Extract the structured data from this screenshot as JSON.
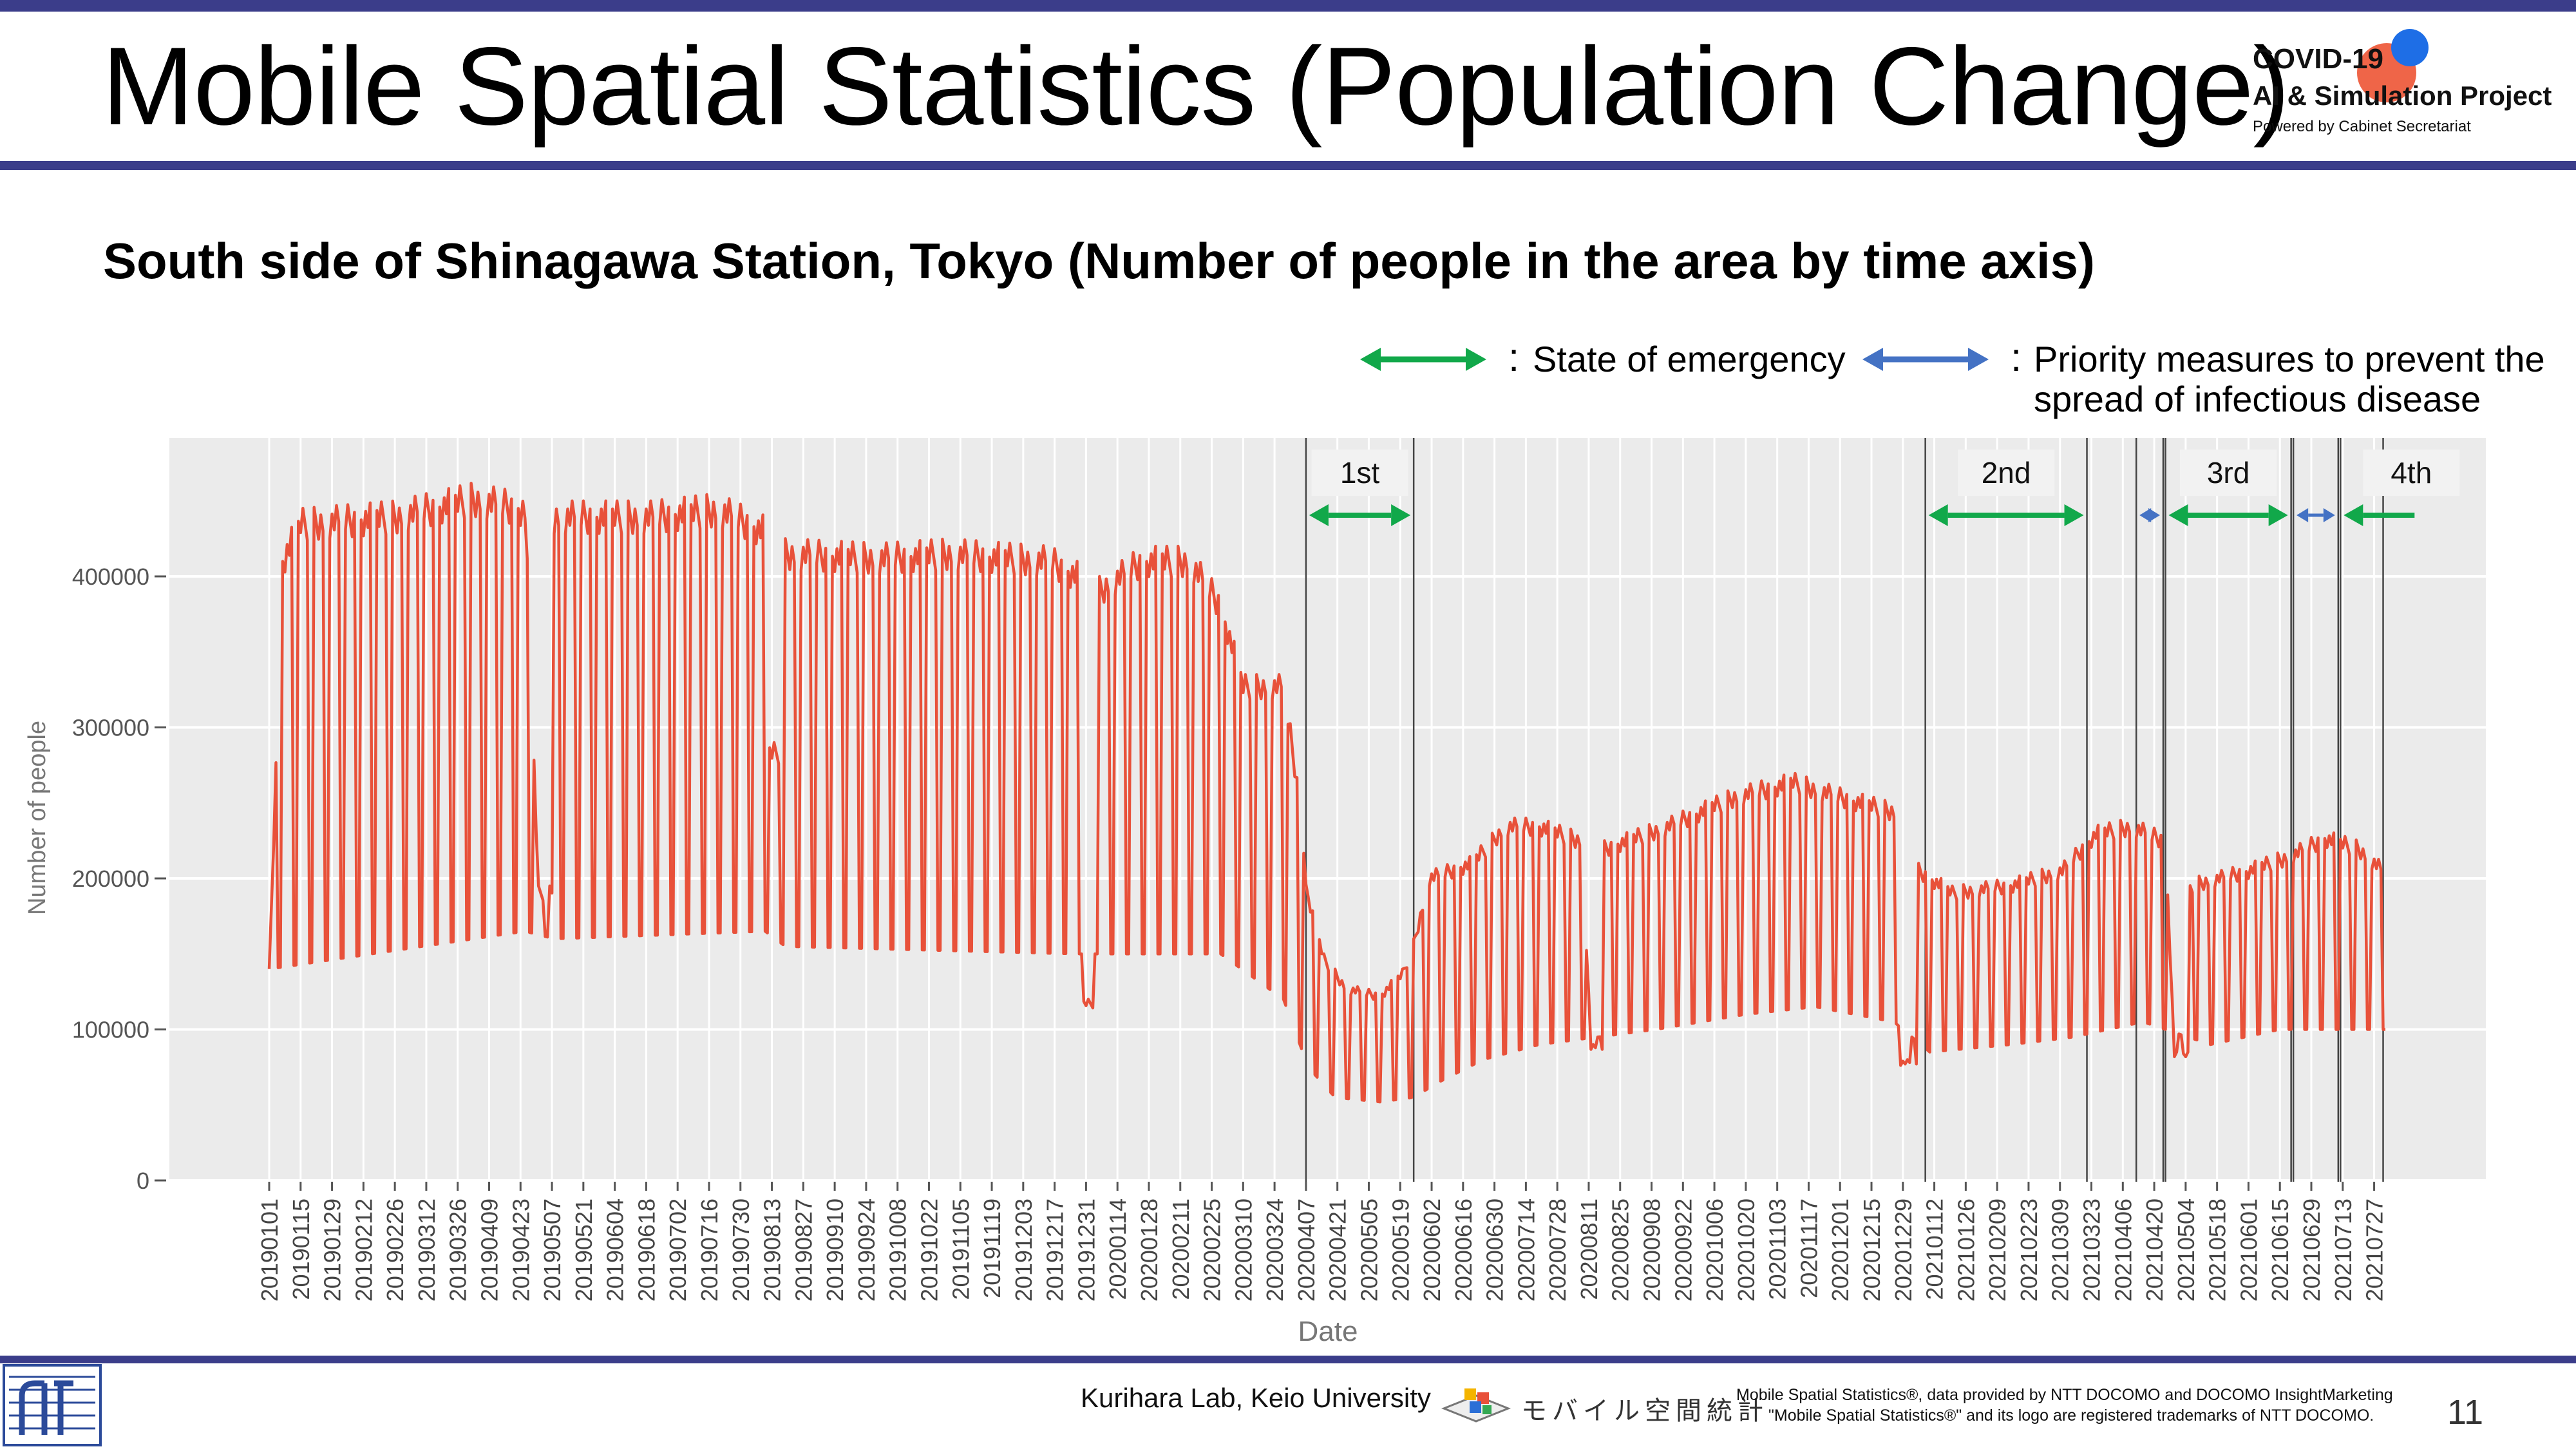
{
  "slide": {
    "title": "Mobile Spatial Statistics (Population Change)",
    "subtitle": "South side of Shinagawa Station, Tokyo (Number of people in the area by time axis)",
    "page_number": "11"
  },
  "logo": {
    "line1": "COVID-19",
    "line2": "AI & Simulation Project",
    "line3": "Powered by Cabinet Secretariat"
  },
  "legend": {
    "emergency_label": "State of emergency",
    "priority_label_line1": "Priority measures to prevent the",
    "priority_label_line2": "spread of infectious disease",
    "emergency_color": "#11a84a",
    "priority_color": "#4472c4"
  },
  "footer": {
    "lab": "Kurihara Lab, Keio University",
    "mobile_logo_text": "モバイル空間統計",
    "credit_line1": "Mobile Spatial Statistics®, data provided by NTT DOCOMO and DOCOMO InsightMarketing",
    "credit_line2": "\"Mobile Spatial Statistics®\" and its logo are registered trademarks of NTT DOCOMO."
  },
  "chart_data": {
    "type": "line",
    "xlabel": "Date",
    "ylabel": "Number of people",
    "y_ticks": [
      0,
      100000,
      200000,
      300000,
      400000
    ],
    "y_tick_labels": [
      "0",
      "100000",
      "200000",
      "300000",
      "400000"
    ],
    "ylim": [
      0,
      480000
    ],
    "x_start": "20190101",
    "x_end": "20210801",
    "x_tick_labels": [
      "20190101",
      "20190115",
      "20190129",
      "20190212",
      "20190226",
      "20190312",
      "20190326",
      "20190409",
      "20190423",
      "20190507",
      "20190521",
      "20190604",
      "20190618",
      "20190702",
      "20190716",
      "20190730",
      "20190813",
      "20190827",
      "20190910",
      "20190924",
      "20191008",
      "20191022",
      "20191105",
      "20191119",
      "20191203",
      "20191217",
      "20191231",
      "20200114",
      "20200128",
      "20200211",
      "20200225",
      "20200310",
      "20200324",
      "20200407",
      "20200421",
      "20200505",
      "20200519",
      "20200602",
      "20200616",
      "20200630",
      "20200714",
      "20200728",
      "20200811",
      "20200825",
      "20200908",
      "20200922",
      "20201006",
      "20201020",
      "20201103",
      "20201117",
      "20201201",
      "20201215",
      "20201229",
      "20210112",
      "20210126",
      "20210209",
      "20210223",
      "20210309",
      "20210323",
      "20210406",
      "20210420",
      "20210504",
      "20210518",
      "20210601",
      "20210615",
      "20210629",
      "20210713",
      "20210727"
    ],
    "grid": true,
    "line_color": "#e8513a",
    "series": [
      {
        "weekday_level": [
          [
            "2019-01-01",
            140000
          ],
          [
            "2019-01-07",
            420000
          ],
          [
            "2019-01-15",
            445000
          ],
          [
            "2019-02-26",
            450000
          ],
          [
            "2019-04-02",
            462000
          ],
          [
            "2019-04-25",
            455000
          ],
          [
            "2019-05-01",
            195000
          ],
          [
            "2019-05-07",
            195000
          ],
          [
            "2019-05-08",
            450000
          ],
          [
            "2019-06-20",
            450000
          ],
          [
            "2019-07-20",
            455000
          ],
          [
            "2019-08-10",
            440000
          ],
          [
            "2019-08-11",
            290000
          ],
          [
            "2019-08-18",
            290000
          ],
          [
            "2019-08-19",
            425000
          ],
          [
            "2019-09-30",
            422000
          ],
          [
            "2019-10-31",
            425000
          ],
          [
            "2019-12-15",
            420000
          ],
          [
            "2019-12-27",
            410000
          ],
          [
            "2019-12-28",
            120000
          ],
          [
            "2020-01-05",
            120000
          ],
          [
            "2020-01-06",
            400000
          ],
          [
            "2020-01-25",
            420000
          ],
          [
            "2020-02-15",
            420000
          ],
          [
            "2020-02-29",
            390000
          ],
          [
            "2020-03-10",
            335000
          ],
          [
            "2020-03-28",
            335000
          ],
          [
            "2020-04-03",
            270000
          ],
          [
            "2020-04-08",
            190000
          ],
          [
            "2020-04-15",
            150000
          ],
          [
            "2020-04-25",
            130000
          ],
          [
            "2020-05-10",
            125000
          ],
          [
            "2020-05-20",
            140000
          ],
          [
            "2020-05-25",
            160000
          ],
          [
            "2020-06-01",
            205000
          ],
          [
            "2020-06-20",
            215000
          ],
          [
            "2020-07-05",
            240000
          ],
          [
            "2020-07-20",
            240000
          ],
          [
            "2020-08-08",
            230000
          ],
          [
            "2020-08-12",
            90000
          ],
          [
            "2020-08-17",
            90000
          ],
          [
            "2020-08-18",
            225000
          ],
          [
            "2020-09-15",
            240000
          ],
          [
            "2020-10-15",
            260000
          ],
          [
            "2020-11-10",
            270000
          ],
          [
            "2020-12-01",
            260000
          ],
          [
            "2020-12-25",
            250000
          ],
          [
            "2020-12-28",
            80000
          ],
          [
            "2021-01-04",
            80000
          ],
          [
            "2021-01-05",
            210000
          ],
          [
            "2021-01-20",
            195000
          ],
          [
            "2021-02-15",
            200000
          ],
          [
            "2021-03-10",
            210000
          ],
          [
            "2021-03-25",
            235000
          ],
          [
            "2021-04-10",
            240000
          ],
          [
            "2021-04-25",
            230000
          ],
          [
            "2021-04-29",
            85000
          ],
          [
            "2021-05-05",
            85000
          ],
          [
            "2021-05-06",
            200000
          ],
          [
            "2021-06-01",
            210000
          ],
          [
            "2021-06-20",
            220000
          ],
          [
            "2021-07-05",
            232000
          ],
          [
            "2021-07-20",
            225000
          ],
          [
            "2021-07-31",
            210000
          ]
        ],
        "weekend_level": [
          [
            "2019-01-01",
            140000
          ],
          [
            "2019-04-25",
            165000
          ],
          [
            "2019-05-08",
            160000
          ],
          [
            "2019-08-10",
            165000
          ],
          [
            "2019-08-19",
            155000
          ],
          [
            "2019-12-27",
            150000
          ],
          [
            "2020-01-06",
            150000
          ],
          [
            "2020-02-29",
            150000
          ],
          [
            "2020-03-28",
            120000
          ],
          [
            "2020-04-08",
            75000
          ],
          [
            "2020-04-20",
            55000
          ],
          [
            "2020-05-10",
            52000
          ],
          [
            "2020-05-25",
            55000
          ],
          [
            "2020-06-05",
            65000
          ],
          [
            "2020-06-25",
            80000
          ],
          [
            "2020-07-20",
            90000
          ],
          [
            "2020-09-10",
            100000
          ],
          [
            "2020-10-20",
            110000
          ],
          [
            "2020-11-20",
            115000
          ],
          [
            "2020-12-25",
            105000
          ],
          [
            "2021-01-10",
            85000
          ],
          [
            "2021-02-15",
            90000
          ],
          [
            "2021-03-15",
            95000
          ],
          [
            "2021-04-15",
            105000
          ],
          [
            "2021-05-15",
            90000
          ],
          [
            "2021-06-15",
            100000
          ],
          [
            "2021-07-31",
            100000
          ]
        ]
      }
    ],
    "periods": [
      {
        "type": "State of emergency",
        "label": "1st",
        "start": "2020-04-07",
        "end": "2020-05-25"
      },
      {
        "type": "State of emergency",
        "label": "2nd",
        "start": "2021-01-08",
        "end": "2021-03-21"
      },
      {
        "type": "Priority measures to prevent the spread of infectious disease",
        "label": "",
        "start": "2021-04-12",
        "end": "2021-04-24"
      },
      {
        "type": "State of emergency",
        "label": "3rd",
        "start": "2021-04-25",
        "end": "2021-06-20"
      },
      {
        "type": "Priority measures to prevent the spread of infectious disease",
        "label": "",
        "start": "2021-06-21",
        "end": "2021-07-11"
      },
      {
        "type": "State of emergency",
        "label": "4th",
        "start": "2021-07-12",
        "end": "2021-07-31"
      }
    ]
  }
}
